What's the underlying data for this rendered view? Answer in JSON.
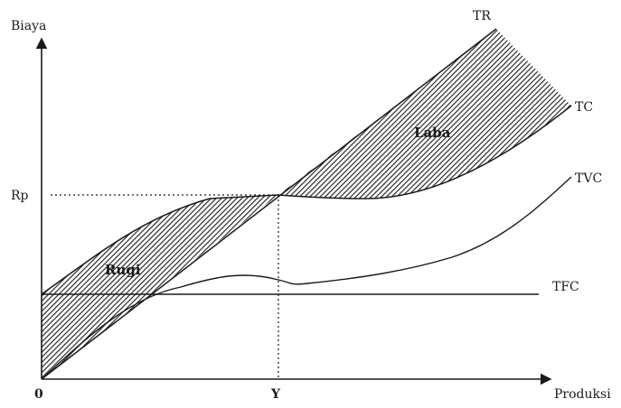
{
  "axes": {
    "y_label": "Biaya",
    "x_label": "Produksi",
    "origin_label": "0",
    "y_tick_label": "Rp",
    "x_tick_label": "Y"
  },
  "curves": {
    "tr_label": "TR",
    "tc_label": "TC",
    "tvc_label": "TVC",
    "tfc_label": "TFC"
  },
  "regions": {
    "loss_label": "Rugi",
    "profit_label": "Laba"
  },
  "colors": {
    "ink": "#1a1a1a",
    "background": "#ffffff"
  }
}
